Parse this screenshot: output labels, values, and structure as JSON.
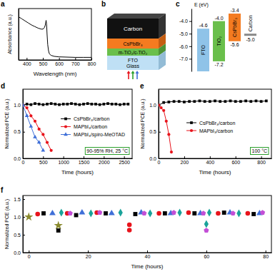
{
  "chart_data": [
    {
      "type": "line",
      "title": "a",
      "xlabel": "Wavelength (nm)",
      "ylabel": "Absorbance (a.u.)",
      "xlim": [
        350,
        800
      ],
      "xticks": [
        400,
        500,
        600,
        700,
        800
      ],
      "ylim": [
        0,
        1
      ],
      "tick_labels": "x",
      "color": "#000000",
      "x": [
        350,
        370,
        390,
        410,
        430,
        450,
        470,
        490,
        500,
        510,
        515,
        520,
        523,
        526,
        530,
        535,
        540,
        550,
        570,
        600,
        650,
        700,
        750,
        800
      ],
      "values": [
        0.84,
        0.8,
        0.76,
        0.72,
        0.68,
        0.65,
        0.62,
        0.6,
        0.6,
        0.63,
        0.68,
        0.77,
        0.7,
        0.5,
        0.3,
        0.18,
        0.12,
        0.09,
        0.07,
        0.06,
        0.055,
        0.05,
        0.05,
        0.05
      ]
    },
    {
      "type": "energy_level",
      "title": "c",
      "ylabel": "E (eV)",
      "ylim": [
        -8,
        -3
      ],
      "yticks": [
        {
          "value": -7,
          "label": "-7.0"
        },
        {
          "value": -6,
          "label": "-6.0"
        },
        {
          "value": -5,
          "label": "-5.0"
        },
        {
          "value": -4,
          "label": "-4.0"
        }
      ],
      "series": [
        {
          "name": "FTO",
          "color": "#8fc3e8",
          "values": [
            -4.6
          ],
          "value_labels": [
            "-4.6"
          ]
        },
        {
          "name": "TiO₂",
          "color": "#6abf4b",
          "values": [
            -4.0,
            -7.2
          ],
          "value_labels": [
            "-4.0",
            "-7.2"
          ]
        },
        {
          "name": "CsPbBr₃",
          "color": "#f47b20",
          "values": [
            -3.4,
            -5.6
          ],
          "value_labels": [
            "-3.4",
            "-5.6"
          ]
        },
        {
          "name": "Carbon",
          "color": "#888888",
          "values": [
            -5.0
          ],
          "value_labels": [
            "-5.0"
          ]
        }
      ]
    },
    {
      "type": "line",
      "title": "d",
      "xlabel": "Time (hours)",
      "ylabel": "Normalized PCE (a.u.)",
      "xlim": [
        0,
        2700
      ],
      "xticks": [
        0,
        500,
        1000,
        1500,
        2000,
        2500
      ],
      "ylim": [
        0,
        1.3
      ],
      "yticks": [
        {
          "value": 0,
          "label": "0.0"
        },
        0.5,
        {
          "value": 1,
          "label": "1.0"
        }
      ],
      "legend": "center right",
      "annotations": [
        "90-95% RH, 25 °C"
      ],
      "series": [
        {
          "name": "CsPbBr₃/carbon",
          "color": "#000000",
          "marker": "square",
          "x": [
            0,
            100,
            200,
            300,
            400,
            500,
            600,
            700,
            800,
            900,
            1000,
            1100,
            1200,
            1300,
            1400,
            1500,
            1600,
            1700,
            1800,
            1900,
            2000,
            2100,
            2200,
            2300,
            2400,
            2500,
            2600
          ],
          "values": [
            1.0,
            1.02,
            1.01,
            1.03,
            1.02,
            1.01,
            1.02,
            1.03,
            1.02,
            1.01,
            1.02,
            1.02,
            1.03,
            1.02,
            1.01,
            1.02,
            1.03,
            1.02,
            1.02,
            1.01,
            1.02,
            1.03,
            1.02,
            1.02,
            1.01,
            1.02,
            1.02
          ]
        },
        {
          "name": "MAPbI₃/carbon",
          "color": "#e8141c",
          "marker": "circle",
          "x": [
            0,
            100,
            200,
            300,
            400,
            500,
            600,
            700
          ],
          "values": [
            1.0,
            0.95,
            0.8,
            0.7,
            0.55,
            0.45,
            0.3,
            0.15
          ]
        },
        {
          "name": "MAPbI₃/spiro-MeOTAD",
          "color": "#3f6fd8",
          "marker": "triangle",
          "x": [
            0,
            100,
            200,
            300,
            400,
            500
          ],
          "values": [
            1.0,
            0.8,
            0.6,
            0.4,
            0.3,
            0.15
          ]
        }
      ]
    },
    {
      "type": "line",
      "title": "e",
      "xlabel": "Time (hours)",
      "ylabel": "Normalized PCE (a.u.)",
      "xlim": [
        0,
        880
      ],
      "xticks": [
        0,
        200,
        400,
        600,
        800
      ],
      "ylim": [
        0,
        1.3
      ],
      "yticks": [
        {
          "value": 0,
          "label": "0.0"
        },
        0.5,
        {
          "value": 1,
          "label": "1.0"
        }
      ],
      "legend": "center",
      "annotations": [
        "100 °C"
      ],
      "series": [
        {
          "name": "CsPbBr₃/carbon",
          "color": "#000000",
          "marker": "square",
          "x": [
            0,
            40,
            80,
            120,
            160,
            200,
            240,
            280,
            320,
            360,
            400,
            440,
            480,
            520,
            560,
            600,
            640,
            680,
            720,
            760,
            800,
            840
          ],
          "values": [
            1.0,
            1.05,
            1.06,
            1.07,
            1.07,
            1.06,
            1.07,
            1.07,
            1.08,
            1.07,
            1.07,
            1.08,
            1.07,
            1.07,
            1.08,
            1.07,
            1.07,
            1.08,
            1.07,
            1.08,
            1.07,
            1.08
          ]
        },
        {
          "name": "MAPbI₃/carbon",
          "color": "#e8141c",
          "marker": "circle",
          "x": [
            0,
            20,
            40,
            60,
            80,
            100
          ],
          "values": [
            1.0,
            0.95,
            0.9,
            0.7,
            0.45,
            0.12
          ]
        }
      ]
    },
    {
      "type": "scatter",
      "title": "f",
      "xlabel": "Time (hours)",
      "ylabel": "Normalized PCE (a.u.)",
      "xlim": [
        -2,
        82
      ],
      "xticks": [
        0,
        20,
        40,
        60,
        80
      ],
      "ylim": [
        0,
        1.6
      ],
      "yticks": [
        {
          "value": 0,
          "label": "0.0"
        },
        0.5,
        {
          "value": 1,
          "label": "1.0"
        },
        1.5
      ],
      "series": [
        {
          "color": "#8a8a2e",
          "marker": "star",
          "x": [
            0,
            10
          ],
          "values": [
            1.0,
            0.76
          ]
        },
        {
          "color": "#e8141c",
          "marker": "circle",
          "x": [
            3,
            13,
            23,
            34,
            34,
            44,
            54,
            64,
            74
          ],
          "values": [
            1.08,
            1.1,
            1.12,
            0.78,
            0.63,
            1.1,
            1.12,
            1.1,
            1.1
          ]
        },
        {
          "color": "#000000",
          "marker": "square",
          "x": [
            5,
            10,
            16,
            26,
            36,
            46,
            56,
            66,
            76
          ],
          "values": [
            1.1,
            0.62,
            1.05,
            1.1,
            1.08,
            1.1,
            1.1,
            1.12,
            1.08
          ]
        },
        {
          "color": "#3f6fd8",
          "marker": "triangle",
          "x": [
            8,
            18,
            28,
            38,
            48,
            58,
            68,
            78
          ],
          "values": [
            1.1,
            1.12,
            1.1,
            1.12,
            1.1,
            1.1,
            1.12,
            1.1
          ]
        },
        {
          "color": "#1aa39a",
          "marker": "diamond",
          "x": [
            11,
            21,
            31,
            41,
            51,
            60,
            61,
            71
          ],
          "values": [
            1.12,
            1.1,
            1.12,
            1.1,
            1.12,
            0.8,
            1.12,
            1.1
          ]
        },
        {
          "color": "#c34fd6",
          "marker": "pentagon",
          "x": [
            14,
            24,
            39,
            49,
            59,
            60,
            69,
            79
          ],
          "values": [
            1.1,
            1.12,
            1.1,
            1.12,
            1.1,
            0.62,
            1.1,
            1.12
          ]
        }
      ]
    }
  ],
  "schematic": {
    "title": "b",
    "layers": [
      [
        "Carbon"
      ],
      [
        "CsPbBr₃"
      ],
      [
        "m-TiO₂/c-TiO₂"
      ],
      [
        "FTO",
        "Glass"
      ]
    ]
  }
}
